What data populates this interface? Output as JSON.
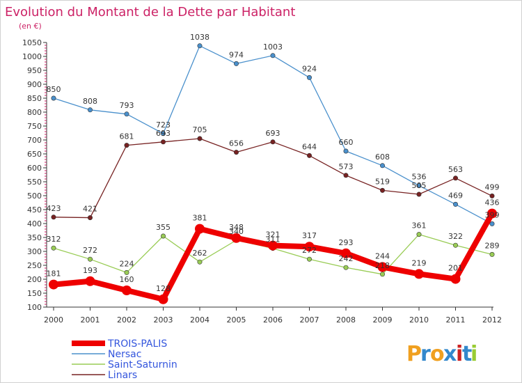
{
  "chart_data": {
    "type": "line",
    "title": "Evolution du Montant de la Dette par Habitant",
    "subtitle": "(en €)",
    "x": [
      "2000",
      "2001",
      "2002",
      "2003",
      "2004",
      "2005",
      "2006",
      "2007",
      "2008",
      "2009",
      "2010",
      "2011",
      "2012"
    ],
    "ylim": [
      100,
      1050
    ],
    "yticks": [
      100,
      150,
      200,
      250,
      300,
      350,
      400,
      450,
      500,
      550,
      600,
      650,
      700,
      750,
      800,
      850,
      900,
      950,
      1000,
      1050
    ],
    "grid": false,
    "legend_position": "bottom-left",
    "series": [
      {
        "name": "TROIS-PALIS",
        "color": "#ee0000",
        "values": [
          181,
          193,
          160,
          128,
          381,
          348,
          321,
          317,
          293,
          244,
          219,
          201,
          436
        ]
      },
      {
        "name": "Nersac",
        "color": "#4a90cc",
        "values": [
          850,
          808,
          793,
          723,
          1038,
          974,
          1003,
          924,
          660,
          608,
          536,
          469,
          399
        ]
      },
      {
        "name": "Saint-Saturnin",
        "color": "#99cc55",
        "values": [
          312,
          272,
          224,
          355,
          262,
          340,
          311,
          272,
          242,
          218,
          361,
          322,
          289
        ]
      },
      {
        "name": "Linars",
        "color": "#772222",
        "values": [
          423,
          421,
          681,
          693,
          705,
          656,
          693,
          644,
          573,
          519,
          505,
          563,
          499
        ]
      }
    ]
  },
  "logo": {
    "text": "Proxiti",
    "letters": [
      {
        "ch": "P",
        "color": "#f0a020"
      },
      {
        "ch": "r",
        "color": "#3388cc"
      },
      {
        "ch": "o",
        "color": "#f0a020"
      },
      {
        "ch": "x",
        "color": "#3388cc"
      },
      {
        "ch": "i",
        "color": "#cc2222"
      },
      {
        "ch": "t",
        "color": "#3388cc"
      },
      {
        "ch": "i",
        "color": "#99cc33"
      }
    ]
  }
}
